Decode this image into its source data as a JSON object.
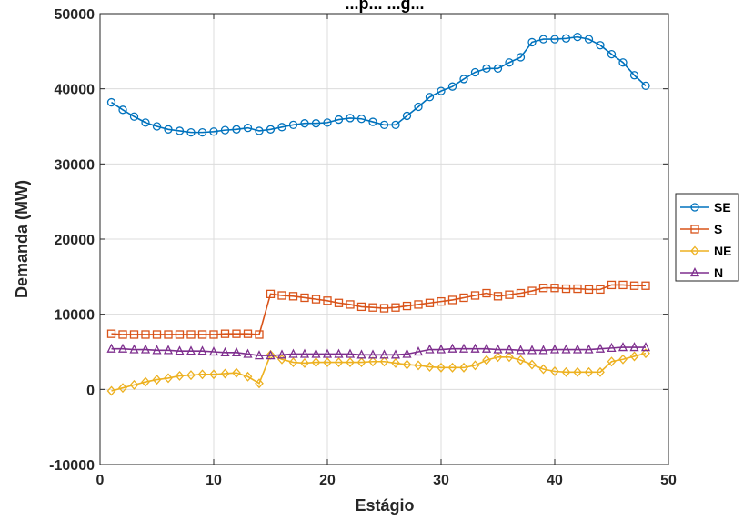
{
  "chart_data": {
    "type": "line",
    "title": "...p... ...g...",
    "xlabel": "Estágio",
    "ylabel": "Demanda (MW)",
    "xlim": [
      0,
      50
    ],
    "ylim": [
      -10000,
      50000
    ],
    "xticks": [
      "0",
      "10",
      "20",
      "30",
      "40",
      "50"
    ],
    "yticks": [
      "-10000",
      "0",
      "10000",
      "20000",
      "30000",
      "40000",
      "50000"
    ],
    "grid": true,
    "legend_position": "right",
    "x": [
      1,
      2,
      3,
      4,
      5,
      6,
      7,
      8,
      9,
      10,
      11,
      12,
      13,
      14,
      15,
      16,
      17,
      18,
      19,
      20,
      21,
      22,
      23,
      24,
      25,
      26,
      27,
      28,
      29,
      30,
      31,
      32,
      33,
      34,
      35,
      36,
      37,
      38,
      39,
      40,
      41,
      42,
      43,
      44,
      45,
      46,
      47,
      48
    ],
    "series": [
      {
        "name": "SE",
        "color": "#0072BD",
        "marker": "circle",
        "values": [
          38200,
          37200,
          36300,
          35500,
          35000,
          34600,
          34400,
          34200,
          34200,
          34300,
          34500,
          34600,
          34800,
          34400,
          34600,
          34900,
          35200,
          35400,
          35400,
          35500,
          35900,
          36100,
          36000,
          35600,
          35200,
          35200,
          36400,
          37600,
          38900,
          39700,
          40300,
          41300,
          42200,
          42700,
          42700,
          43500,
          44200,
          46200,
          46600,
          46600,
          46700,
          46900,
          46600,
          45800,
          44600,
          43500,
          41800,
          40400
        ]
      },
      {
        "name": "S",
        "color": "#D95319",
        "marker": "square",
        "values": [
          7400,
          7300,
          7300,
          7300,
          7300,
          7300,
          7300,
          7300,
          7300,
          7300,
          7400,
          7400,
          7400,
          7300,
          12700,
          12500,
          12400,
          12200,
          12000,
          11800,
          11500,
          11300,
          11000,
          10900,
          10800,
          10900,
          11100,
          11300,
          11500,
          11700,
          11900,
          12200,
          12500,
          12800,
          12400,
          12600,
          12800,
          13100,
          13500,
          13500,
          13400,
          13400,
          13300,
          13300,
          13900,
          13900,
          13800,
          13800
        ]
      },
      {
        "name": "NE",
        "color": "#EDB120",
        "marker": "diamond",
        "values": [
          -200,
          200,
          600,
          1000,
          1300,
          1500,
          1800,
          1900,
          2000,
          2000,
          2100,
          2200,
          1700,
          800,
          4600,
          4000,
          3600,
          3500,
          3600,
          3600,
          3600,
          3600,
          3600,
          3700,
          3700,
          3500,
          3300,
          3200,
          3000,
          2900,
          2900,
          2900,
          3200,
          3900,
          4300,
          4300,
          3900,
          3300,
          2700,
          2400,
          2300,
          2300,
          2300,
          2300,
          3700,
          4000,
          4400,
          4800
        ]
      },
      {
        "name": "N",
        "color": "#7E2F8E",
        "marker": "triangle",
        "values": [
          5400,
          5400,
          5300,
          5300,
          5200,
          5200,
          5100,
          5100,
          5100,
          5000,
          4900,
          4900,
          4700,
          4500,
          4500,
          4600,
          4700,
          4700,
          4700,
          4700,
          4700,
          4700,
          4600,
          4600,
          4600,
          4600,
          4700,
          5000,
          5300,
          5300,
          5400,
          5400,
          5400,
          5400,
          5300,
          5300,
          5200,
          5200,
          5200,
          5300,
          5300,
          5300,
          5300,
          5400,
          5500,
          5600,
          5600,
          5600
        ]
      }
    ]
  }
}
